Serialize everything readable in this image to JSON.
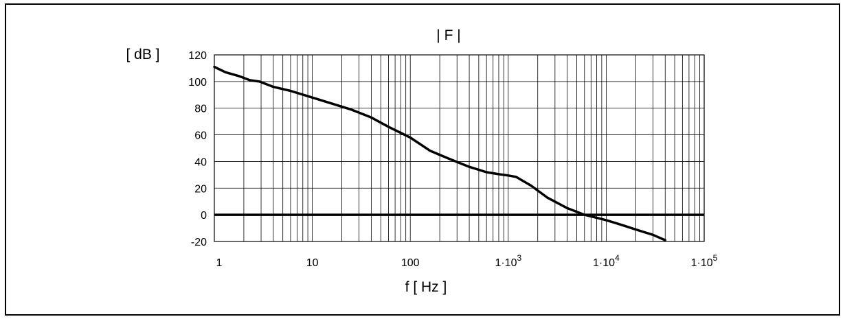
{
  "chart_data": {
    "type": "line",
    "title": "| F |",
    "ylabel": "[ dB ]",
    "xlabel": "f [ Hz ]",
    "x_scale": "log",
    "xlim": [
      1,
      100000
    ],
    "ylim": [
      -20,
      120
    ],
    "grid": true,
    "x_tick_labels": [
      {
        "value": 1,
        "label": "1"
      },
      {
        "value": 10,
        "label": "10"
      },
      {
        "value": 100,
        "label": "100"
      },
      {
        "value": 1000,
        "label": "1·10",
        "exponent": "3"
      },
      {
        "value": 10000,
        "label": "1·10",
        "exponent": "4"
      },
      {
        "value": 100000,
        "label": "1·10",
        "exponent": "5"
      }
    ],
    "y_ticks": [
      120,
      100,
      80,
      60,
      40,
      20,
      0,
      -20
    ],
    "reference_line": 0,
    "series": [
      {
        "x": [
          1,
          1.3,
          1.8,
          2.3,
          2.9,
          4,
          6,
          9,
          15,
          25,
          40,
          60,
          100,
          160,
          250,
          400,
          600,
          800,
          1000,
          1200,
          1700,
          2500,
          4000,
          6000,
          10000,
          15000,
          20000,
          30000,
          40000
        ],
        "y": [
          111,
          107,
          104,
          101,
          100,
          96,
          93,
          89,
          84,
          79,
          73,
          66,
          58,
          48,
          42,
          36,
          32,
          30.5,
          29.5,
          28.5,
          22,
          13,
          5,
          0,
          -4,
          -8,
          -11,
          -15,
          -19
        ]
      }
    ]
  }
}
